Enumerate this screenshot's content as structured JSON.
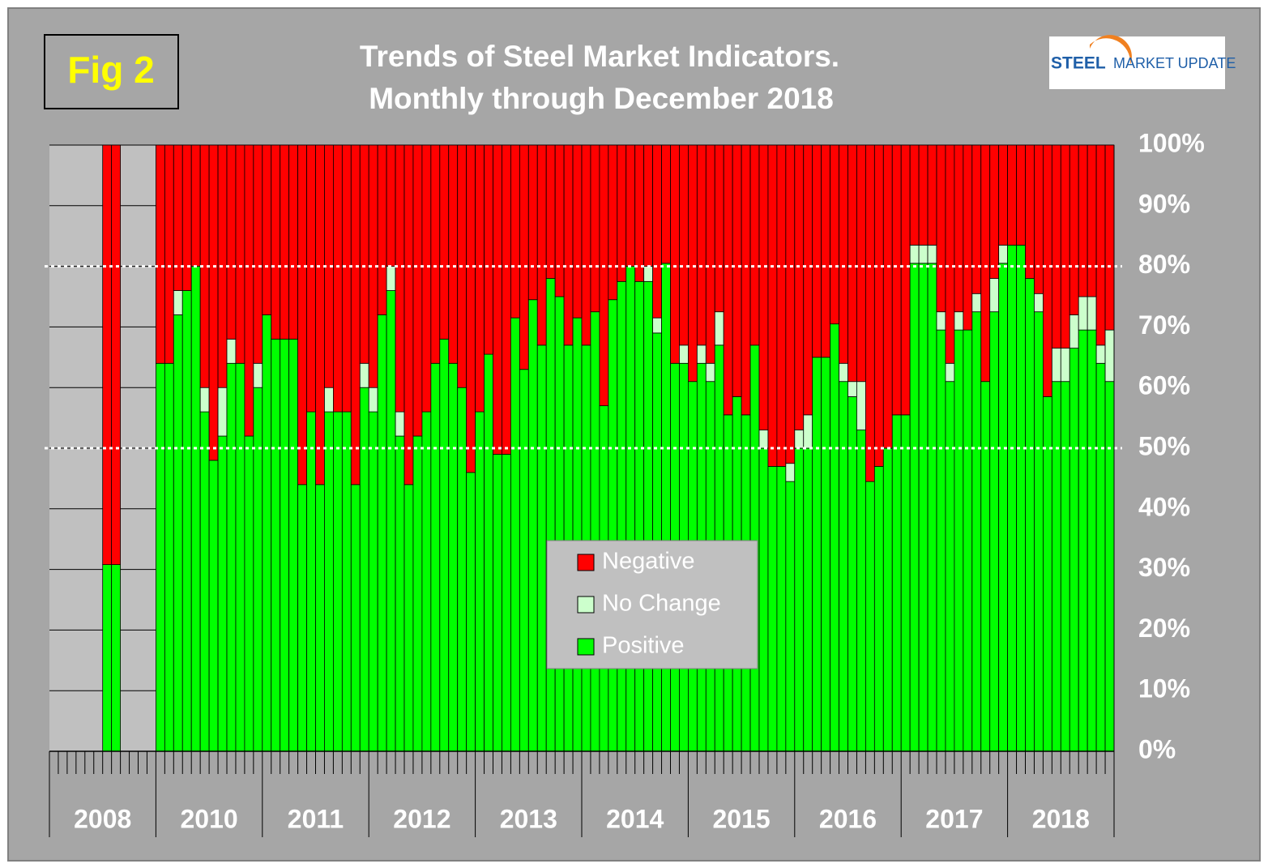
{
  "badge": "Fig 2",
  "logo": [
    "STEEL",
    "MARKET UPDATE"
  ],
  "chart_data": {
    "type": "stacked-bar",
    "title": [
      "Trends of Steel Market Indicators.",
      "Monthly through  December 2018"
    ],
    "categories": [
      "2008",
      null,
      null,
      null,
      null,
      null,
      null,
      null,
      null,
      null,
      null,
      null,
      "2010",
      null,
      null,
      null,
      null,
      null,
      null,
      null,
      null,
      null,
      null,
      null,
      "2011",
      null,
      null,
      null,
      null,
      null,
      null,
      null,
      null,
      null,
      null,
      null,
      "2012",
      null,
      null,
      null,
      null,
      null,
      null,
      null,
      null,
      null,
      null,
      null,
      "2013",
      null,
      null,
      null,
      null,
      null,
      null,
      null,
      null,
      null,
      null,
      null,
      "2014",
      null,
      null,
      null,
      null,
      null,
      null,
      null,
      null,
      null,
      null,
      null,
      "2015",
      null,
      null,
      null,
      null,
      null,
      null,
      null,
      null,
      null,
      null,
      null,
      "2016",
      null,
      null,
      null,
      null,
      null,
      null,
      null,
      null,
      null,
      null,
      null,
      "2017",
      null,
      null,
      null,
      null,
      null,
      null,
      null,
      null,
      null,
      null,
      null,
      "2018",
      null,
      null,
      null,
      null,
      null,
      null,
      null,
      null,
      null,
      null,
      null
    ],
    "series": [
      {
        "name": "Positive",
        "color": "#00ff00",
        "values": [
          null,
          null,
          null,
          null,
          null,
          null,
          30.8,
          30.8,
          null,
          null,
          null,
          null,
          64,
          64,
          72,
          76,
          80,
          56,
          48,
          52,
          64,
          64,
          52,
          60,
          72,
          68,
          68,
          68,
          44,
          56,
          44,
          56,
          56,
          56,
          44,
          60,
          56,
          72,
          76,
          52,
          44,
          52,
          56,
          64,
          68,
          64,
          60,
          46,
          56,
          65.5,
          49,
          49,
          71.5,
          63,
          74.5,
          67,
          78,
          75,
          67,
          71.5,
          67,
          72.5,
          57,
          74.5,
          77.5,
          80,
          77.5,
          77.5,
          69,
          80.5,
          64,
          64,
          61,
          64,
          61,
          67,
          55.5,
          58.5,
          55.5,
          67,
          50,
          47,
          47,
          44.5,
          50,
          50,
          65,
          65,
          70.5,
          61,
          58.5,
          53,
          44.5,
          47,
          50,
          55.5,
          55.5,
          80.5,
          80.5,
          80.5,
          69.5,
          61,
          69.5,
          69.5,
          72.5,
          61,
          72.5,
          80.5,
          83.5,
          83.5,
          78,
          72.5,
          58.5,
          61,
          61,
          66.5,
          69.5,
          69.5,
          64,
          61
        ]
      },
      {
        "name": "No Change",
        "color": "#ccffcc",
        "values": [
          null,
          null,
          null,
          null,
          null,
          null,
          0,
          0,
          null,
          null,
          null,
          null,
          0,
          0,
          4,
          0,
          0,
          4,
          0,
          8,
          4,
          0,
          0,
          4,
          0,
          0,
          0,
          0,
          0,
          0,
          0,
          4,
          0,
          0,
          0,
          4,
          4,
          0,
          4,
          4,
          0,
          0,
          0,
          0,
          0,
          0,
          0,
          0,
          0,
          0,
          0,
          0,
          0,
          0,
          0,
          0,
          0,
          0,
          0,
          0,
          0,
          0,
          0,
          0,
          0,
          0,
          0,
          2.5,
          2.5,
          0,
          0,
          3,
          0,
          3,
          3,
          5.5,
          0,
          0,
          0,
          0,
          3,
          0,
          0,
          3,
          3,
          5.5,
          0,
          0,
          0,
          3,
          2.5,
          8,
          0,
          0,
          0,
          0,
          0,
          3,
          3,
          3,
          3,
          3,
          3,
          0,
          3,
          0,
          5.5,
          3,
          0,
          0,
          0,
          3,
          0,
          5.5,
          5.5,
          5.5,
          5.5,
          5.5,
          3,
          8.5
        ]
      },
      {
        "name": "Negative",
        "color": "#ff0000",
        "values": [
          null,
          null,
          null,
          null,
          null,
          null,
          69.2,
          69.2,
          null,
          null,
          null,
          null,
          36,
          36,
          24,
          24,
          20,
          40,
          52,
          40,
          32,
          36,
          48,
          36,
          28,
          32,
          32,
          32,
          56,
          44,
          56,
          40,
          44,
          44,
          56,
          36,
          40,
          28,
          20,
          44,
          56,
          48,
          44,
          36,
          32,
          36,
          40,
          54,
          44,
          34.5,
          51,
          51,
          28.5,
          37,
          25.5,
          33,
          22,
          25,
          33,
          28.5,
          33,
          27.5,
          43,
          25.5,
          22.5,
          20,
          22.5,
          20,
          28.5,
          19.5,
          36,
          33,
          39,
          33,
          36,
          27.5,
          44.5,
          41.5,
          44.5,
          33,
          47,
          53,
          53,
          52.5,
          47,
          44.5,
          35,
          35,
          29.5,
          36,
          39,
          39,
          55.5,
          53,
          50,
          44.5,
          44.5,
          16.5,
          16.5,
          16.5,
          27.5,
          36,
          27.5,
          30.5,
          24.5,
          39,
          22,
          16.5,
          16.5,
          16.5,
          22,
          24.5,
          41.5,
          33.5,
          33.5,
          28,
          25,
          25,
          33,
          30.5
        ]
      }
    ],
    "ylim": [
      0,
      100
    ],
    "yticks": [
      {
        "value": 0,
        "label": "0%"
      },
      {
        "value": 10,
        "label": "10%"
      },
      {
        "value": 20,
        "label": "20%"
      },
      {
        "value": 30,
        "label": "30%"
      },
      {
        "value": 40,
        "label": "40%"
      },
      {
        "value": 50,
        "label": "50%"
      },
      {
        "value": 60,
        "label": "60%"
      },
      {
        "value": 70,
        "label": "70%"
      },
      {
        "value": 80,
        "label": "80%"
      },
      {
        "value": 90,
        "label": "90%"
      },
      {
        "value": 100,
        "label": "100%"
      }
    ],
    "reference_lines": [
      50,
      80
    ],
    "grid": true
  }
}
